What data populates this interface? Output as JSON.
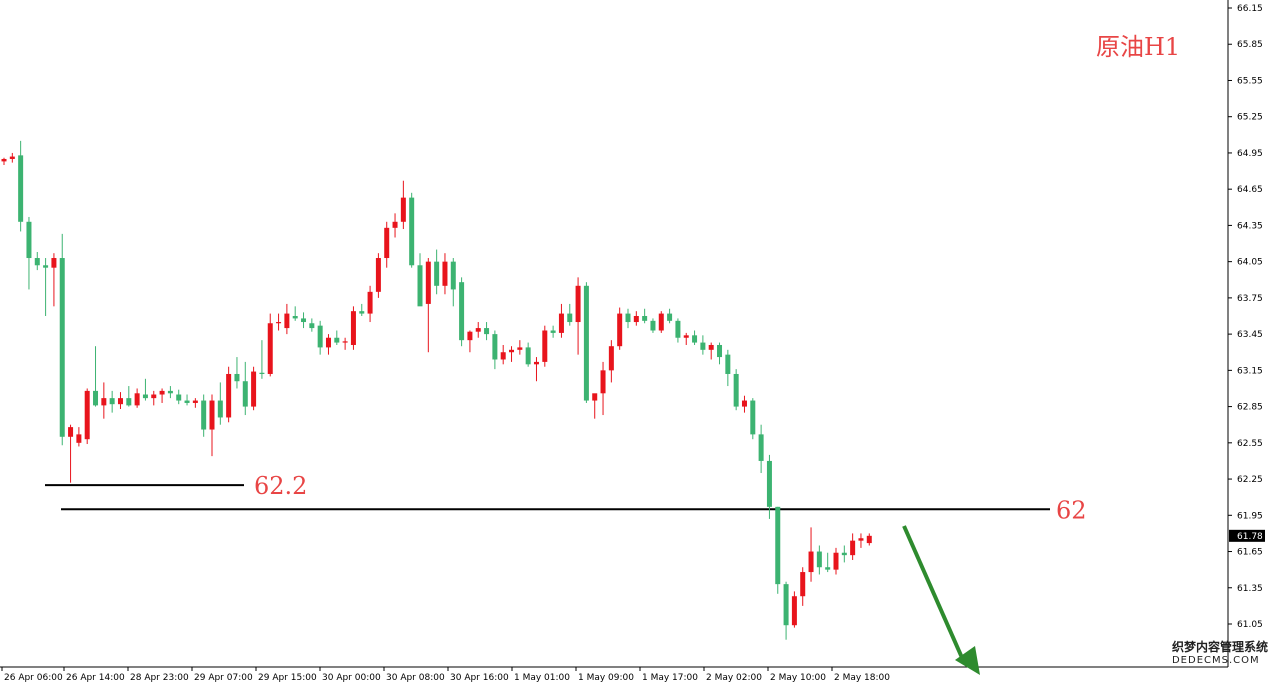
{
  "chart_data": {
    "type": "candlestick",
    "title": "原油H1",
    "ylim": [
      60.83,
      66.24
    ],
    "y_ticks": [
      "66.15",
      "65.85",
      "65.55",
      "65.25",
      "64.95",
      "64.65",
      "64.35",
      "64.05",
      "63.75",
      "63.45",
      "63.15",
      "62.85",
      "62.55",
      "62.25",
      "61.95",
      "61.65",
      "61.35",
      "61.05"
    ],
    "x_ticks": [
      "26 Apr 06:00",
      "26 Apr 14:00",
      "28 Apr 23:00",
      "29 Apr 07:00",
      "29 Apr 15:00",
      "30 Apr 00:00",
      "30 Apr 08:00",
      "30 Apr 16:00",
      "1 May 01:00",
      "1 May 09:00",
      "1 May 17:00",
      "2 May 02:00",
      "2 May 10:00",
      "2 May 18:00"
    ],
    "current_price": "61.78",
    "levels": [
      {
        "value": 62.2,
        "label": "62.2"
      },
      {
        "value": 62.0,
        "label": "62"
      }
    ],
    "up_color": "#e8141c",
    "down_color": "#3cb371",
    "arrow_color": "#2e8b2e",
    "candles": [
      [
        64.88,
        64.91,
        64.85,
        64.9
      ],
      [
        64.9,
        64.95,
        64.87,
        64.92
      ],
      [
        64.93,
        65.05,
        64.3,
        64.38
      ],
      [
        64.38,
        64.42,
        63.82,
        64.08
      ],
      [
        64.08,
        64.13,
        63.98,
        64.02
      ],
      [
        64.02,
        64.08,
        63.6,
        64.0
      ],
      [
        64.0,
        64.12,
        63.68,
        64.08
      ],
      [
        64.08,
        64.28,
        62.53,
        62.6
      ],
      [
        62.6,
        62.7,
        62.22,
        62.68
      ],
      [
        62.55,
        62.68,
        62.52,
        62.62
      ],
      [
        62.58,
        63.0,
        62.54,
        62.98
      ],
      [
        62.98,
        63.35,
        62.85,
        62.86
      ],
      [
        62.86,
        63.05,
        62.75,
        62.92
      ],
      [
        62.92,
        62.98,
        62.8,
        62.87
      ],
      [
        62.87,
        62.97,
        62.83,
        62.92
      ],
      [
        62.92,
        63.02,
        62.85,
        62.86
      ],
      [
        62.86,
        63.0,
        62.84,
        62.96
      ],
      [
        62.95,
        63.08,
        62.9,
        62.92
      ],
      [
        62.92,
        62.98,
        62.86,
        62.95
      ],
      [
        62.95,
        63.0,
        62.88,
        62.98
      ],
      [
        62.98,
        63.02,
        62.92,
        62.96
      ],
      [
        62.95,
        62.99,
        62.87,
        62.9
      ],
      [
        62.9,
        62.95,
        62.86,
        62.88
      ],
      [
        62.88,
        62.92,
        62.84,
        62.9
      ],
      [
        62.9,
        62.95,
        62.6,
        62.66
      ],
      [
        62.66,
        62.95,
        62.44,
        62.9
      ],
      [
        62.9,
        63.05,
        62.7,
        62.76
      ],
      [
        62.76,
        63.18,
        62.72,
        63.12
      ],
      [
        63.12,
        63.26,
        63.0,
        63.06
      ],
      [
        63.06,
        63.22,
        62.78,
        62.85
      ],
      [
        62.85,
        63.18,
        62.82,
        63.14
      ],
      [
        63.13,
        63.4,
        63.08,
        63.12
      ],
      [
        63.12,
        63.62,
        63.1,
        63.54
      ],
      [
        63.54,
        63.62,
        63.48,
        63.55
      ],
      [
        63.5,
        63.7,
        63.45,
        63.62
      ],
      [
        63.6,
        63.68,
        63.56,
        63.58
      ],
      [
        63.58,
        63.63,
        63.5,
        63.55
      ],
      [
        63.54,
        63.58,
        63.47,
        63.5
      ],
      [
        63.52,
        63.56,
        63.28,
        63.34
      ],
      [
        63.34,
        63.45,
        63.28,
        63.42
      ],
      [
        63.42,
        63.48,
        63.36,
        63.38
      ],
      [
        63.38,
        63.42,
        63.32,
        63.39
      ],
      [
        63.36,
        63.68,
        63.32,
        63.64
      ],
      [
        63.64,
        63.7,
        63.6,
        63.62
      ],
      [
        63.62,
        63.85,
        63.55,
        63.8
      ],
      [
        63.8,
        64.12,
        63.75,
        64.08
      ],
      [
        64.08,
        64.38,
        64.0,
        64.33
      ],
      [
        64.33,
        64.45,
        64.25,
        64.38
      ],
      [
        64.38,
        64.72,
        64.32,
        64.58
      ],
      [
        64.58,
        64.62,
        64.0,
        64.02
      ],
      [
        64.02,
        64.12,
        63.72,
        63.68
      ],
      [
        63.7,
        64.08,
        63.3,
        64.05
      ],
      [
        64.05,
        64.15,
        63.78,
        63.85
      ],
      [
        63.85,
        64.12,
        63.78,
        64.05
      ],
      [
        64.05,
        64.08,
        63.68,
        63.82
      ],
      [
        63.88,
        63.92,
        63.35,
        63.4
      ],
      [
        63.4,
        63.48,
        63.3,
        63.47
      ],
      [
        63.47,
        63.55,
        63.42,
        63.5
      ],
      [
        63.5,
        63.55,
        63.4,
        63.45
      ],
      [
        63.45,
        63.48,
        63.16,
        63.24
      ],
      [
        63.24,
        63.36,
        63.2,
        63.3
      ],
      [
        63.3,
        63.35,
        63.22,
        63.32
      ],
      [
        63.32,
        63.4,
        63.28,
        63.34
      ],
      [
        63.34,
        63.38,
        63.18,
        63.2
      ],
      [
        63.2,
        63.26,
        63.06,
        63.22
      ],
      [
        63.22,
        63.52,
        63.18,
        63.48
      ],
      [
        63.48,
        63.52,
        63.42,
        63.46
      ],
      [
        63.46,
        63.7,
        63.42,
        63.62
      ],
      [
        63.62,
        63.7,
        63.52,
        63.55
      ],
      [
        63.55,
        63.92,
        63.28,
        63.85
      ],
      [
        63.85,
        63.88,
        62.88,
        62.9
      ],
      [
        62.9,
        62.95,
        62.75,
        62.96
      ],
      [
        62.96,
        63.22,
        62.78,
        63.15
      ],
      [
        63.15,
        63.4,
        63.05,
        63.35
      ],
      [
        63.35,
        63.67,
        63.32,
        63.62
      ],
      [
        63.62,
        63.66,
        63.5,
        63.55
      ],
      [
        63.55,
        63.64,
        63.52,
        63.6
      ],
      [
        63.6,
        63.66,
        63.54,
        63.56
      ],
      [
        63.56,
        63.58,
        63.46,
        63.48
      ],
      [
        63.48,
        63.64,
        63.46,
        63.62
      ],
      [
        63.62,
        63.66,
        63.54,
        63.56
      ],
      [
        63.56,
        63.58,
        63.38,
        63.42
      ],
      [
        63.42,
        63.46,
        63.36,
        63.44
      ],
      [
        63.44,
        63.48,
        63.36,
        63.38
      ],
      [
        63.38,
        63.44,
        63.28,
        63.32
      ],
      [
        63.32,
        63.38,
        63.24,
        63.36
      ],
      [
        63.36,
        63.38,
        63.2,
        63.26
      ],
      [
        63.28,
        63.32,
        63.02,
        63.12
      ],
      [
        63.12,
        63.16,
        62.82,
        62.85
      ],
      [
        62.85,
        62.94,
        62.8,
        62.9
      ],
      [
        62.9,
        62.92,
        62.58,
        62.62
      ],
      [
        62.62,
        62.7,
        62.3,
        62.4
      ],
      [
        62.4,
        62.45,
        61.92,
        62.02
      ],
      [
        62.02,
        62.02,
        61.3,
        61.38
      ],
      [
        61.38,
        61.4,
        60.92,
        61.04
      ],
      [
        61.04,
        61.32,
        61.02,
        61.28
      ],
      [
        61.28,
        61.52,
        61.2,
        61.48
      ],
      [
        61.48,
        61.85,
        61.4,
        61.65
      ],
      [
        61.65,
        61.7,
        61.46,
        61.52
      ],
      [
        61.52,
        61.64,
        61.48,
        61.5
      ],
      [
        61.5,
        61.68,
        61.46,
        61.64
      ],
      [
        61.64,
        61.7,
        61.56,
        61.62
      ],
      [
        61.62,
        61.8,
        61.58,
        61.74
      ],
      [
        61.74,
        61.8,
        61.68,
        61.76
      ],
      [
        61.72,
        61.8,
        61.7,
        61.78
      ]
    ]
  },
  "watermark": {
    "line1": "织梦内容管理系统",
    "line2": "DEDECMS.COM"
  }
}
